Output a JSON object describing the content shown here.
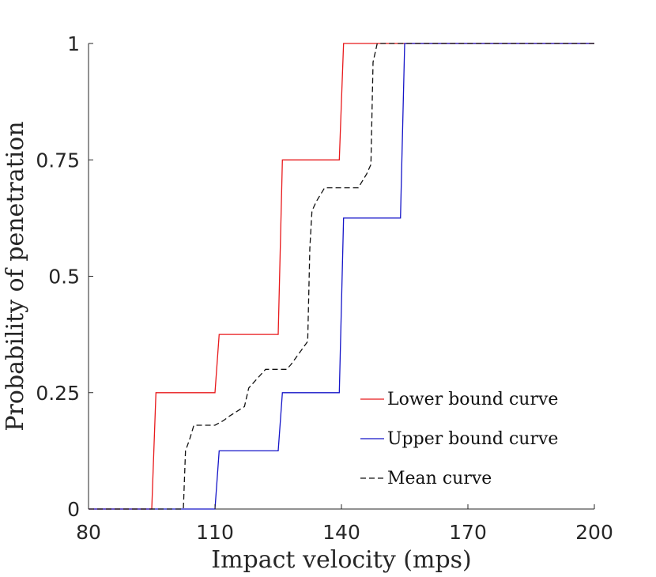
{
  "chart_data": {
    "type": "line",
    "title": "",
    "xlabel": "Impact velocity (mps)",
    "ylabel": "Probability of penetration",
    "xlim": [
      80,
      200
    ],
    "ylim": [
      0,
      1
    ],
    "grid": false,
    "legend_position": "bottom-right",
    "x_ticks": [
      80,
      110,
      140,
      170,
      200
    ],
    "x_tick_labels": [
      "80",
      "110",
      "140",
      "170",
      "200"
    ],
    "y_ticks": [
      0,
      0.25,
      0.5,
      0.75,
      1
    ],
    "y_tick_labels": [
      "0",
      "0.25",
      "0.5",
      "0.75",
      "1"
    ],
    "series": [
      {
        "name": "Lower bound curve",
        "color": "#e8191b",
        "dash": "solid",
        "x": [
          80,
          95,
          96,
          110,
          111,
          125,
          126,
          139.5,
          140.5,
          200
        ],
        "y": [
          0,
          0,
          0.25,
          0.25,
          0.375,
          0.375,
          0.75,
          0.75,
          1,
          1
        ]
      },
      {
        "name": "Upper bound curve",
        "color": "#1515c8",
        "dash": "solid",
        "x": [
          80,
          110,
          111,
          125,
          126,
          139.5,
          140.5,
          154,
          155,
          200
        ],
        "y": [
          0,
          0,
          0.125,
          0.125,
          0.25,
          0.25,
          0.625,
          0.625,
          1,
          1
        ]
      },
      {
        "name": "Mean curve",
        "color": "#111111",
        "dash": "dashed",
        "x": [
          80,
          102.5,
          103,
          104,
          105,
          110,
          112,
          113.5,
          117,
          118,
          120,
          122,
          124,
          126,
          127,
          128,
          132,
          132.5,
          133,
          134,
          136,
          140,
          144,
          146,
          147,
          147.5,
          148.5,
          200
        ],
        "y": [
          0,
          0,
          0.125,
          0.15,
          0.18,
          0.18,
          0.19,
          0.2,
          0.22,
          0.26,
          0.28,
          0.3,
          0.3,
          0.3,
          0.3,
          0.31,
          0.36,
          0.56,
          0.64,
          0.66,
          0.69,
          0.69,
          0.69,
          0.72,
          0.74,
          0.96,
          1,
          1
        ]
      }
    ]
  }
}
